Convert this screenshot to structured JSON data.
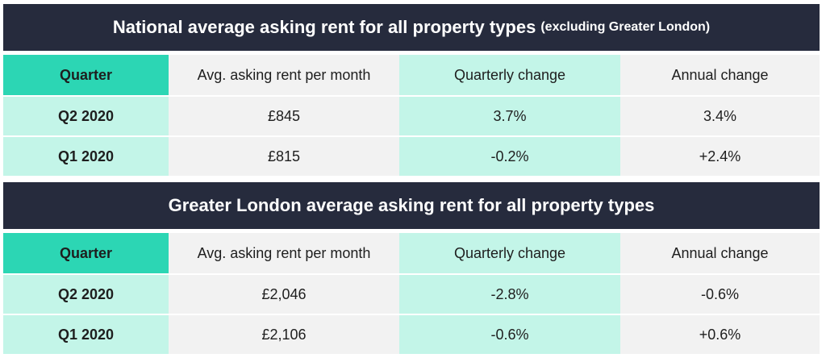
{
  "tables": [
    {
      "title": "National average asking rent for all property types",
      "subtitle": "(excluding Greater London)",
      "headers": [
        "Quarter",
        "Avg. asking rent per month",
        "Quarterly change",
        "Annual change"
      ],
      "rows": [
        [
          "Q2 2020",
          "£845",
          "3.7%",
          "3.4%"
        ],
        [
          "Q1 2020",
          "£815",
          "-0.2%",
          "+2.4%"
        ]
      ]
    },
    {
      "title": "Greater London average asking rent for all property types",
      "subtitle": "",
      "headers": [
        "Quarter",
        "Avg. asking rent per month",
        "Quarterly change",
        "Annual change"
      ],
      "rows": [
        [
          "Q2 2020",
          "£2,046",
          "-2.8%",
          "-0.6%"
        ],
        [
          "Q1 2020",
          "£2,106",
          "-0.6%",
          "+0.6%"
        ]
      ]
    }
  ],
  "colors": {
    "title_background": "#262b3d",
    "header_accent": "#2cd6b4",
    "mint_column": "#c3f5e8",
    "grey_column": "#f2f2f2"
  }
}
